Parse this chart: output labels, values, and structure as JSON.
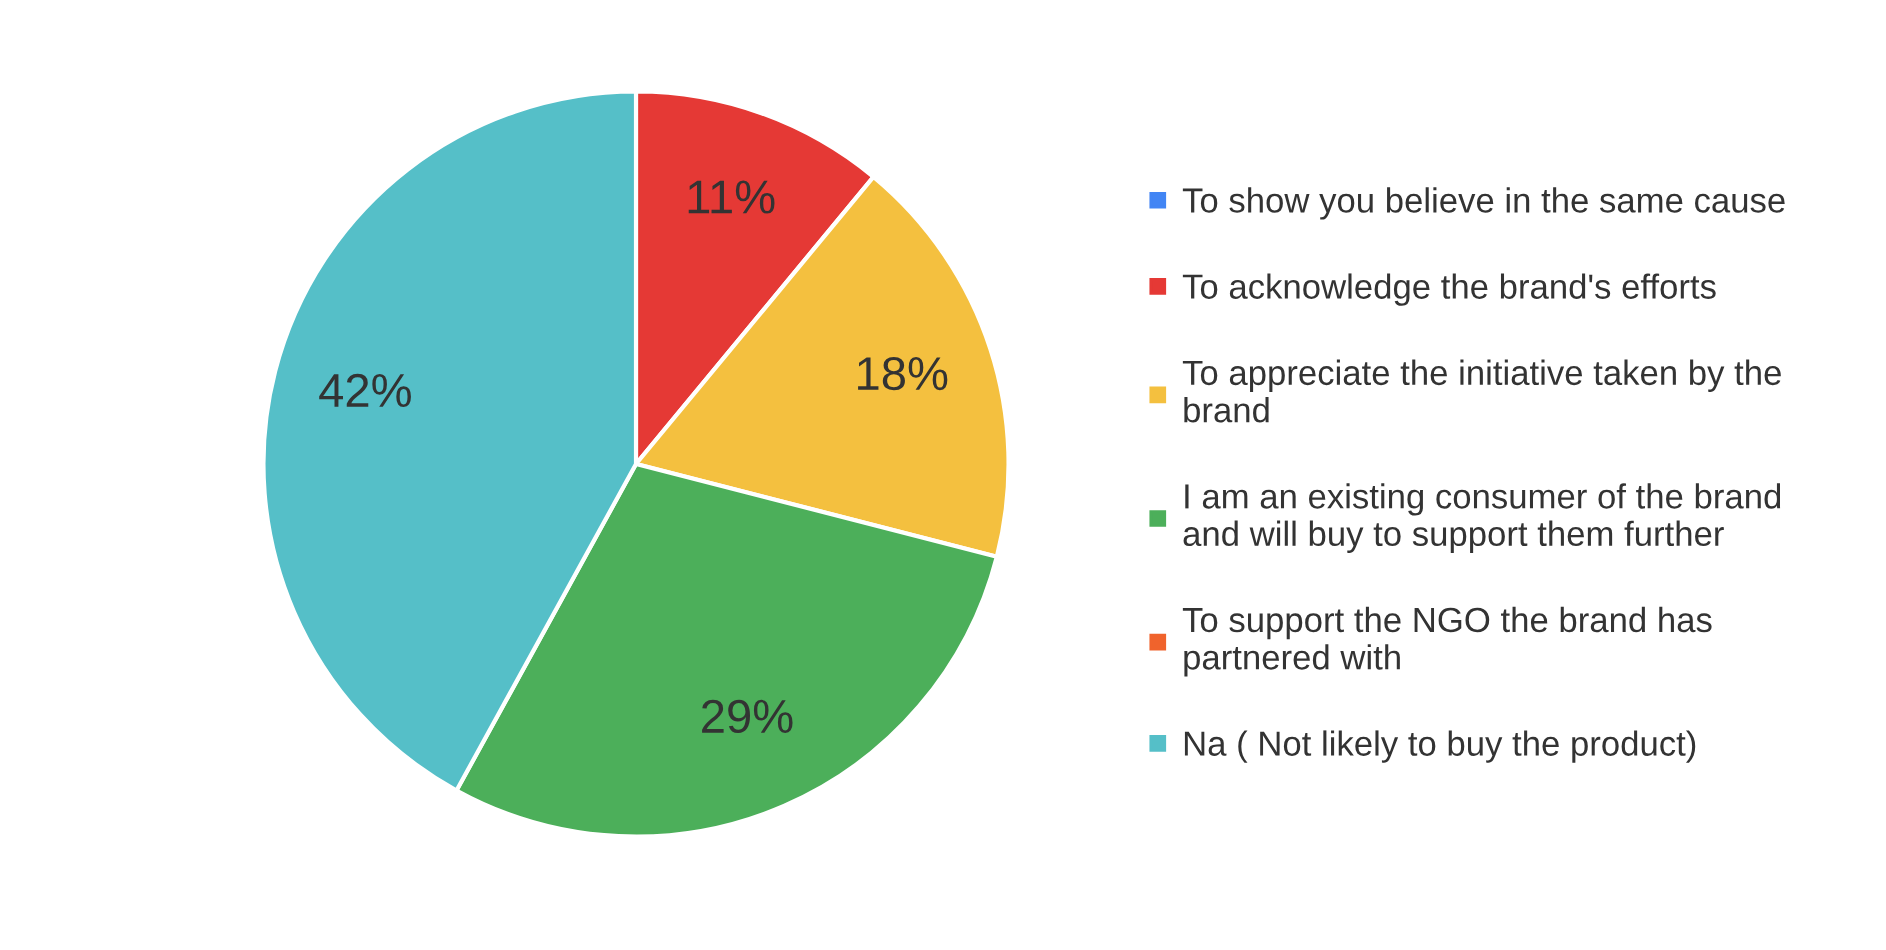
{
  "chart_data": {
    "type": "pie",
    "categories": [
      "To show you believe in the same cause",
      "To acknowledge the brand's efforts",
      "To appreciate the initiative taken by the\nbrand",
      "I am an existing consumer of the brand\nand will buy to support them further",
      "To support the NGO the brand has\npartnered with",
      "Na ( Not likely to buy the product)"
    ],
    "values": [
      0,
      11,
      18,
      29,
      0,
      42
    ],
    "colors": [
      "#4285f4",
      "#e53935",
      "#f4c03f",
      "#4caf5a",
      "#f0632c",
      "#55bfc8"
    ],
    "value_labels": [
      null,
      "11%",
      "18%",
      "29%",
      null,
      "42%"
    ],
    "legend": "right"
  }
}
